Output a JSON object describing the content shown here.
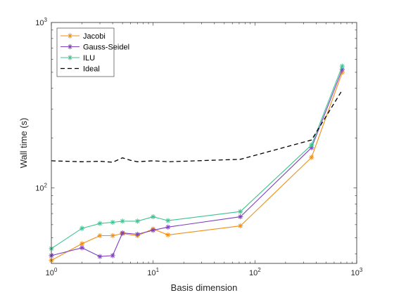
{
  "chart_data": {
    "type": "line",
    "title": "",
    "xlabel": "Basis dimension",
    "ylabel": "Wall time (s)",
    "xscale": "log",
    "yscale": "log",
    "xlim": [
      1,
      1000
    ],
    "ylim": [
      35,
      1000
    ],
    "x_ticks": [
      {
        "value": 1,
        "base": "10",
        "exp": "0"
      },
      {
        "value": 10,
        "base": "10",
        "exp": "1"
      },
      {
        "value": 100,
        "base": "10",
        "exp": "2"
      },
      {
        "value": 1000,
        "base": "10",
        "exp": "3"
      }
    ],
    "y_ticks": [
      {
        "value": 100,
        "base": "10",
        "exp": "2"
      },
      {
        "value": 1000,
        "base": "10",
        "exp": "3"
      }
    ],
    "grid": false,
    "legend_position": "top-left",
    "series": [
      {
        "name": "Jacobi",
        "color": "#f28e12",
        "marker": "asterisk",
        "line": "solid",
        "points": [
          [
            1,
            36.5
          ],
          [
            2,
            46
          ],
          [
            3,
            51.5
          ],
          [
            4,
            51.5
          ],
          [
            5,
            53
          ],
          [
            7,
            51.5
          ],
          [
            10,
            56.5
          ],
          [
            14,
            52
          ],
          [
            72,
            59
          ],
          [
            360,
            153
          ],
          [
            720,
            500
          ]
        ]
      },
      {
        "name": "Gauss-Seidel",
        "color": "#7e3fc0",
        "marker": "asterisk",
        "line": "solid",
        "points": [
          [
            1,
            39
          ],
          [
            2,
            43.5
          ],
          [
            3,
            38.5
          ],
          [
            4,
            39
          ],
          [
            5,
            53.5
          ],
          [
            7,
            52.5
          ],
          [
            10,
            55.5
          ],
          [
            14,
            58
          ],
          [
            72,
            67
          ],
          [
            360,
            175
          ],
          [
            720,
            520
          ]
        ]
      },
      {
        "name": "ILU",
        "color": "#3cc48f",
        "marker": "asterisk",
        "line": "solid",
        "points": [
          [
            1,
            43
          ],
          [
            2,
            57
          ],
          [
            3,
            61
          ],
          [
            4,
            62
          ],
          [
            5,
            63
          ],
          [
            7,
            63
          ],
          [
            10,
            67
          ],
          [
            14,
            63.5
          ],
          [
            72,
            72
          ],
          [
            360,
            182
          ],
          [
            720,
            545
          ]
        ]
      },
      {
        "name": "Ideal",
        "color": "#000000",
        "marker": "none",
        "line": "dashed",
        "points": [
          [
            1,
            146
          ],
          [
            2,
            144
          ],
          [
            3,
            145
          ],
          [
            4,
            143
          ],
          [
            5,
            152
          ],
          [
            6,
            147
          ],
          [
            7,
            144
          ],
          [
            10,
            146
          ],
          [
            14,
            144
          ],
          [
            72,
            149
          ],
          [
            360,
            195
          ],
          [
            720,
            390
          ]
        ]
      }
    ]
  }
}
